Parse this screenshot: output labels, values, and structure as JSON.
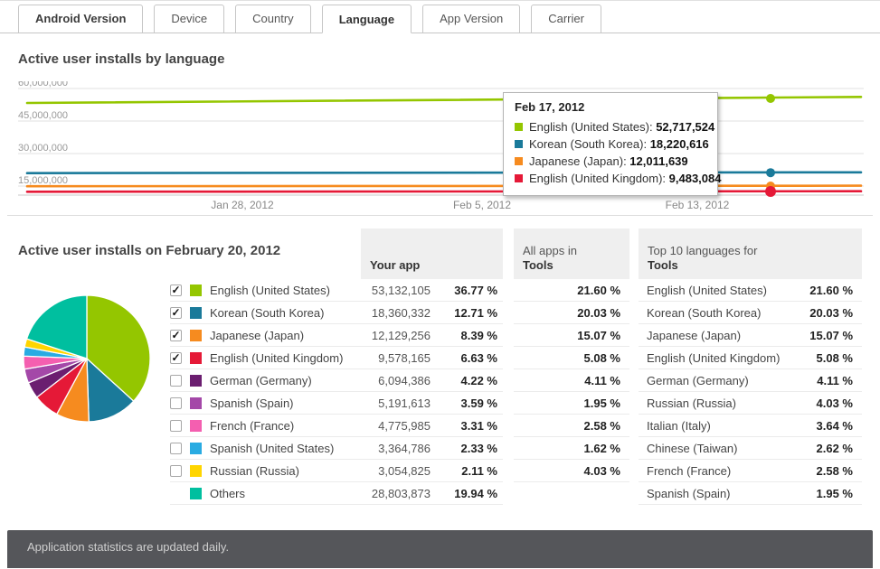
{
  "tabs": [
    {
      "label": "Android Version",
      "active": false,
      "bold": true
    },
    {
      "label": "Device",
      "active": false,
      "bold": false
    },
    {
      "label": "Country",
      "active": false,
      "bold": false
    },
    {
      "label": "Language",
      "active": true,
      "bold": true
    },
    {
      "label": "App Version",
      "active": false,
      "bold": false
    },
    {
      "label": "Carrier",
      "active": false,
      "bold": false
    }
  ],
  "sections": {
    "chart_title": "Active user installs by language",
    "table_title": "Active user installs on February 20, 2012"
  },
  "tooltip": {
    "date": "Feb 17, 2012",
    "entries": [
      {
        "label": "English (United States)",
        "value": "52,717,524",
        "color": "#94c600"
      },
      {
        "label": "Korean (South Korea)",
        "value": "18,220,616",
        "color": "#1a7a9a"
      },
      {
        "label": "Japanese (Japan)",
        "value": "12,011,639",
        "color": "#f68b1f"
      },
      {
        "label": "English (United Kingdom)",
        "value": "9,483,084",
        "color": "#e51937"
      }
    ]
  },
  "chart_data": [
    {
      "type": "line",
      "title": "Active user installs by language",
      "x_ticks": [
        "Jan 28, 2012",
        "Feb 5, 2012",
        "Feb 13, 2012"
      ],
      "y_ticks": [
        "60,000,000",
        "45,000,000",
        "30,000,000",
        "15,000,000"
      ],
      "y_tick_values": [
        60000000,
        45000000,
        30000000,
        15000000
      ],
      "highlight_date": "Feb 17, 2012",
      "series": [
        {
          "name": "English (United States)",
          "color": "#94c600",
          "start": 50600000,
          "end": 53400000,
          "point": 52717524,
          "emphasis": false
        },
        {
          "name": "Korean (South Korea)",
          "color": "#1a7a9a",
          "start": 18000000,
          "end": 18400000,
          "point": 18220616,
          "emphasis": false
        },
        {
          "name": "Japanese (Japan)",
          "color": "#f68b1f",
          "start": 11900000,
          "end": 12150000,
          "point": 12011639,
          "emphasis": false
        },
        {
          "name": "English (United Kingdom)",
          "color": "#e51937",
          "start": 9350000,
          "end": 9600000,
          "point": 9483084,
          "emphasis": true
        }
      ]
    },
    {
      "type": "pie",
      "labels": [
        "English (United States)",
        "Korean (South Korea)",
        "Japanese (Japan)",
        "English (United Kingdom)",
        "German (Germany)",
        "Spanish (Spain)",
        "French (France)",
        "Spanish (United States)",
        "Russian (Russia)",
        "Others"
      ],
      "values": [
        36.77,
        12.71,
        8.39,
        6.63,
        4.22,
        3.59,
        3.31,
        2.33,
        2.11,
        19.94
      ],
      "colors": [
        "#94c600",
        "#1a7a9a",
        "#f68b1f",
        "#e51937",
        "#6b1e70",
        "#a448a8",
        "#f45fb0",
        "#29abe2",
        "#ffd500",
        "#00bf9f"
      ]
    }
  ],
  "your_app": {
    "header": "Your app"
  },
  "all_apps": {
    "line1": "All apps in",
    "line2": "Tools"
  },
  "table": {
    "rows": [
      {
        "checked": true,
        "color": "#94c600",
        "label": "English (United States)",
        "installs": "53,132,105",
        "pct": "36.77 %",
        "all_apps_pct": "21.60 %"
      },
      {
        "checked": true,
        "color": "#1a7a9a",
        "label": "Korean (South Korea)",
        "installs": "18,360,332",
        "pct": "12.71 %",
        "all_apps_pct": "20.03 %"
      },
      {
        "checked": true,
        "color": "#f68b1f",
        "label": "Japanese (Japan)",
        "installs": "12,129,256",
        "pct": "8.39 %",
        "all_apps_pct": "15.07 %"
      },
      {
        "checked": true,
        "color": "#e51937",
        "label": "English (United Kingdom)",
        "installs": "9,578,165",
        "pct": "6.63 %",
        "all_apps_pct": "5.08 %"
      },
      {
        "checked": false,
        "color": "#6b1e70",
        "label": "German (Germany)",
        "installs": "6,094,386",
        "pct": "4.22 %",
        "all_apps_pct": "4.11 %"
      },
      {
        "checked": false,
        "color": "#a448a8",
        "label": "Spanish (Spain)",
        "installs": "5,191,613",
        "pct": "3.59 %",
        "all_apps_pct": "1.95 %"
      },
      {
        "checked": false,
        "color": "#f45fb0",
        "label": "French (France)",
        "installs": "4,775,985",
        "pct": "3.31 %",
        "all_apps_pct": "2.58 %"
      },
      {
        "checked": false,
        "color": "#29abe2",
        "label": "Spanish (United States)",
        "installs": "3,364,786",
        "pct": "2.33 %",
        "all_apps_pct": "1.62 %"
      },
      {
        "checked": false,
        "color": "#ffd500",
        "label": "Russian (Russia)",
        "installs": "3,054,825",
        "pct": "2.11 %",
        "all_apps_pct": "4.03 %"
      },
      {
        "checked": null,
        "color": "#00bf9f",
        "label": "Others",
        "installs": "28,803,873",
        "pct": "19.94 %",
        "all_apps_pct": ""
      }
    ]
  },
  "top10": {
    "line1": "Top 10 languages for",
    "line2": "Tools",
    "rows": [
      {
        "label": "English (United States)",
        "pct": "21.60 %"
      },
      {
        "label": "Korean (South Korea)",
        "pct": "20.03 %"
      },
      {
        "label": "Japanese (Japan)",
        "pct": "15.07 %"
      },
      {
        "label": "English (United Kingdom)",
        "pct": "5.08 %"
      },
      {
        "label": "German (Germany)",
        "pct": "4.11 %"
      },
      {
        "label": "Russian (Russia)",
        "pct": "4.03 %"
      },
      {
        "label": "Italian (Italy)",
        "pct": "3.64 %"
      },
      {
        "label": "Chinese (Taiwan)",
        "pct": "2.62 %"
      },
      {
        "label": "French (France)",
        "pct": "2.58 %"
      },
      {
        "label": "Spanish (Spain)",
        "pct": "1.95 %"
      }
    ]
  },
  "footer": {
    "text": "Application statistics are updated daily."
  }
}
